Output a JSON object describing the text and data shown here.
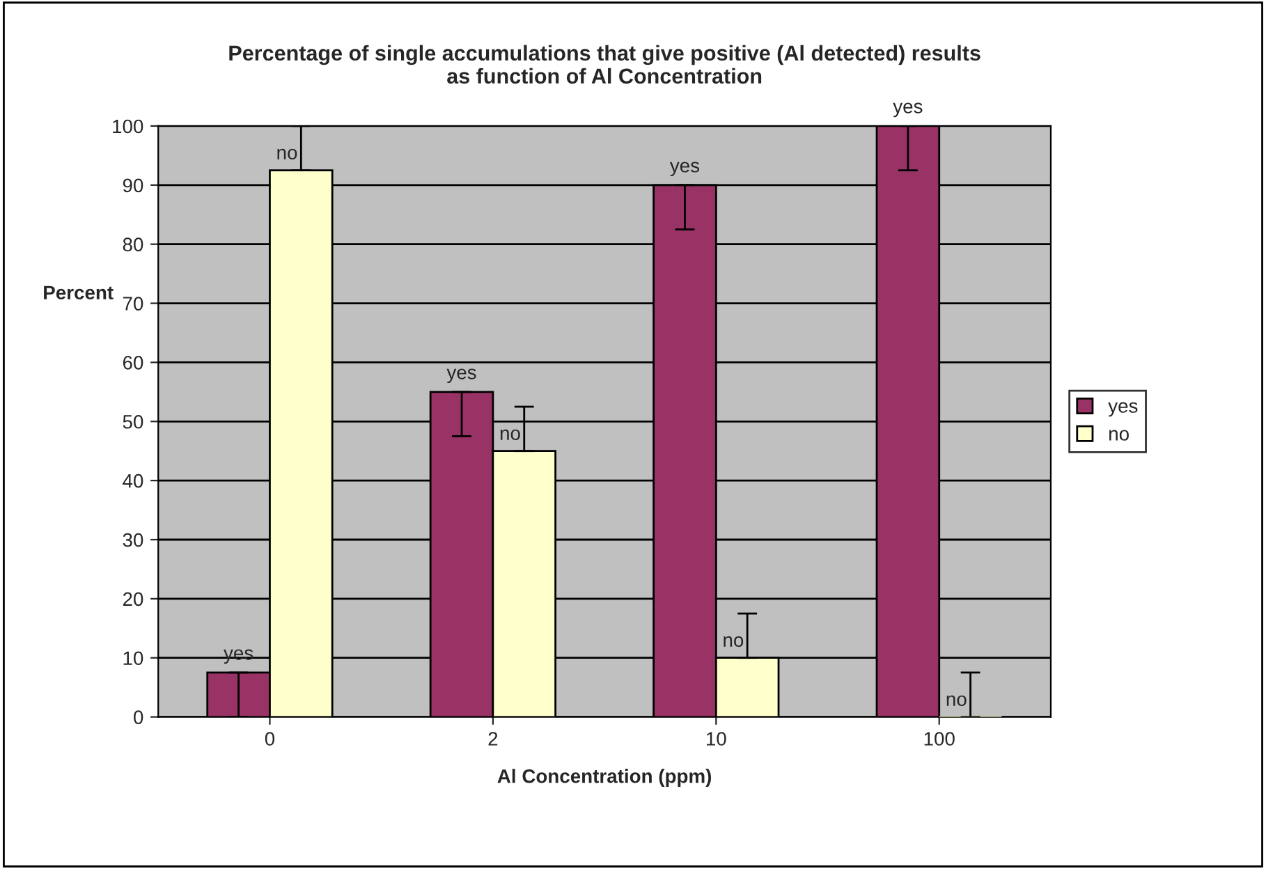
{
  "chart_data": {
    "type": "bar",
    "title": "Percentage of single accumulations that give positive (Al detected) results\nas function of Al Concentration",
    "xlabel": "Al Concentration (ppm)",
    "ylabel": "Percent",
    "categories": [
      "0",
      "2",
      "10",
      "100"
    ],
    "series": [
      {
        "name": "yes",
        "color": "#993366",
        "values": [
          7.5,
          55,
          90,
          100
        ],
        "errors": [
          [
            0,
            7.5
          ],
          [
            47.5,
            55
          ],
          [
            82.5,
            90
          ],
          [
            92.5,
            100
          ]
        ],
        "value_labels": [
          "yes",
          "yes",
          "yes",
          "yes"
        ]
      },
      {
        "name": "no",
        "color": "#ffffcc",
        "values": [
          92.5,
          45,
          10,
          0
        ],
        "errors": [
          [
            92.5,
            100
          ],
          [
            45,
            52.5
          ],
          [
            10,
            17.5
          ],
          [
            0,
            7.5
          ]
        ],
        "value_labels": [
          "no",
          "no",
          "no",
          "no"
        ]
      }
    ],
    "ylim": [
      0,
      100
    ],
    "yticks": [
      0,
      10,
      20,
      30,
      40,
      50,
      60,
      70,
      80,
      90,
      100
    ],
    "grid": "y",
    "legend": "right"
  }
}
